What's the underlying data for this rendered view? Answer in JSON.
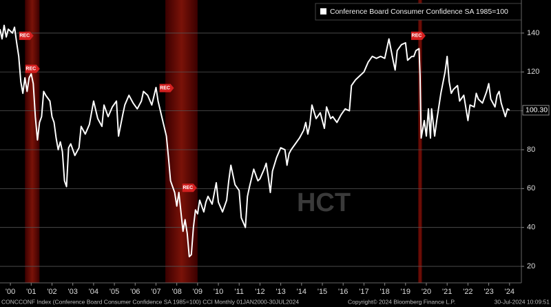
{
  "chart_data": {
    "type": "line",
    "legend": "Conference Board Consumer Confidence SA 1985=100",
    "legend_position": "top-right",
    "footer_left": "CONCCONF Index (Conference Board Consumer Confidence SA 1985=100) CCI  Monthly 01JAN2000-30JUL2024",
    "footer_mid": "Copyright© 2024 Bloomberg Finance L.P.",
    "footer_right": "30-Jul-2024 10:09:51",
    "watermark": "HCT",
    "last_value_label": "100.30",
    "color": "#ffffff",
    "grid": true,
    "xlim": [
      2000,
      2025.07
    ],
    "ylim": [
      11.5,
      156.3
    ],
    "yticks": [
      20,
      40,
      60,
      80,
      100,
      120,
      140
    ],
    "xticks": [
      {
        "value": 2000.5,
        "label": "'00"
      },
      {
        "value": 2001.5,
        "label": "'01"
      },
      {
        "value": 2002.5,
        "label": "'02"
      },
      {
        "value": 2003.5,
        "label": "'03"
      },
      {
        "value": 2004.5,
        "label": "'04"
      },
      {
        "value": 2005.5,
        "label": "'05"
      },
      {
        "value": 2006.5,
        "label": "'06"
      },
      {
        "value": 2007.5,
        "label": "'07"
      },
      {
        "value": 2008.5,
        "label": "'08"
      },
      {
        "value": 2009.5,
        "label": "'09"
      },
      {
        "value": 2010.5,
        "label": "'10"
      },
      {
        "value": 2011.5,
        "label": "'11"
      },
      {
        "value": 2012.5,
        "label": "'12"
      },
      {
        "value": 2013.5,
        "label": "'13"
      },
      {
        "value": 2014.5,
        "label": "'14"
      },
      {
        "value": 2015.5,
        "label": "'15"
      },
      {
        "value": 2016.5,
        "label": "'16"
      },
      {
        "value": 2017.5,
        "label": "'17"
      },
      {
        "value": 2018.5,
        "label": "'18"
      },
      {
        "value": 2019.5,
        "label": "'19"
      },
      {
        "value": 2020.5,
        "label": "'20"
      },
      {
        "value": 2021.5,
        "label": "'21"
      },
      {
        "value": 2022.5,
        "label": "'22"
      },
      {
        "value": 2023.5,
        "label": "'23"
      },
      {
        "value": 2024.5,
        "label": "'24"
      }
    ],
    "recessions": [
      [
        2001.2,
        2001.9
      ],
      [
        2007.95,
        2009.5
      ],
      [
        2020.1,
        2020.3
      ]
    ],
    "annotations": [
      {
        "text": "REC",
        "x": 2001.25,
        "y": 138.6
      },
      {
        "text": "REC",
        "x": 2001.55,
        "y": 121.6
      },
      {
        "text": "REC",
        "x": 2008.0,
        "y": 111.7
      },
      {
        "text": "REC",
        "x": 2009.1,
        "y": 60.4
      },
      {
        "text": "REC",
        "x": 2020.1,
        "y": 138.6
      }
    ],
    "x": [
      2000.0,
      2000.1,
      2000.2,
      2000.3,
      2000.4,
      2000.5,
      2000.6,
      2000.7,
      2000.8,
      2000.9,
      2001.0,
      2001.1,
      2001.2,
      2001.3,
      2001.4,
      2001.5,
      2001.6,
      2001.7,
      2001.8,
      2001.9,
      2002.0,
      2002.1,
      2002.2,
      2002.4,
      2002.5,
      2002.6,
      2002.7,
      2002.8,
      2002.9,
      2003.0,
      2003.1,
      2003.2,
      2003.3,
      2003.4,
      2003.6,
      2003.8,
      2003.9,
      2004.1,
      2004.3,
      2004.5,
      2004.7,
      2004.9,
      2005.0,
      2005.2,
      2005.4,
      2005.6,
      2005.7,
      2005.9,
      2006.0,
      2006.2,
      2006.4,
      2006.6,
      2006.8,
      2006.9,
      2007.1,
      2007.3,
      2007.5,
      2007.6,
      2007.8,
      2008.0,
      2008.1,
      2008.2,
      2008.4,
      2008.5,
      2008.6,
      2008.8,
      2008.9,
      2009.0,
      2009.1,
      2009.2,
      2009.3,
      2009.4,
      2009.5,
      2009.6,
      2009.8,
      2009.9,
      2010.0,
      2010.2,
      2010.4,
      2010.5,
      2010.7,
      2010.9,
      2011.0,
      2011.1,
      2011.3,
      2011.5,
      2011.6,
      2011.8,
      2011.9,
      2012.0,
      2012.2,
      2012.4,
      2012.5,
      2012.7,
      2012.8,
      2012.9,
      2013.0,
      2013.1,
      2013.3,
      2013.5,
      2013.7,
      2013.8,
      2013.9,
      2014.0,
      2014.2,
      2014.4,
      2014.6,
      2014.7,
      2014.8,
      2014.9,
      2015.0,
      2015.2,
      2015.4,
      2015.6,
      2015.7,
      2015.9,
      2016.0,
      2016.2,
      2016.4,
      2016.6,
      2016.8,
      2016.9,
      2017.1,
      2017.3,
      2017.5,
      2017.7,
      2017.9,
      2018.1,
      2018.3,
      2018.5,
      2018.7,
      2018.9,
      2019.0,
      2019.1,
      2019.3,
      2019.5,
      2019.6,
      2019.8,
      2019.9,
      2020.0,
      2020.15,
      2020.2,
      2020.25,
      2020.4,
      2020.5,
      2020.6,
      2020.7,
      2020.75,
      2020.9,
      2021.0,
      2021.2,
      2021.4,
      2021.5,
      2021.6,
      2021.7,
      2021.8,
      2022.0,
      2022.1,
      2022.3,
      2022.5,
      2022.6,
      2022.8,
      2022.9,
      2023.0,
      2023.2,
      2023.4,
      2023.5,
      2023.6,
      2023.8,
      2023.9,
      2024.0,
      2024.1,
      2024.3,
      2024.4,
      2024.5
    ],
    "values": [
      142,
      137,
      144,
      138,
      142,
      141,
      140,
      143,
      135,
      128,
      115,
      109,
      117,
      110,
      117,
      119,
      114,
      97,
      85,
      94,
      97,
      110,
      108,
      105,
      97,
      94,
      86,
      80,
      84,
      79,
      64,
      61,
      81,
      83,
      77,
      81,
      92,
      88,
      93,
      105,
      96,
      92,
      103,
      97,
      102,
      105,
      87,
      98,
      103,
      108,
      104,
      101,
      105,
      110,
      108,
      103,
      112,
      105,
      96,
      87,
      76,
      64,
      58,
      51,
      58,
      38,
      44,
      37,
      25,
      26,
      40,
      49,
      47,
      54,
      48,
      53,
      56,
      52,
      63,
      53,
      48,
      54,
      64,
      72,
      62,
      59,
      45,
      40,
      56,
      61,
      70,
      64,
      65,
      70,
      73,
      66,
      58,
      69,
      76,
      81,
      80,
      72,
      78,
      80,
      83,
      86,
      90,
      94,
      88,
      93,
      103,
      96,
      99,
      91,
      102,
      96,
      97,
      94,
      98,
      101,
      100,
      113,
      116,
      118,
      120,
      125,
      128,
      127,
      128,
      127,
      137,
      126,
      121,
      131,
      134,
      135,
      126,
      128,
      128,
      131,
      132,
      118,
      86,
      95,
      87,
      101,
      86,
      101,
      87,
      95,
      109,
      120,
      128,
      115,
      109,
      111,
      113,
      105,
      108,
      95,
      103,
      102,
      109,
      106,
      104,
      110,
      114,
      106,
      102,
      108,
      110,
      104,
      97,
      101,
      100.3
    ]
  }
}
